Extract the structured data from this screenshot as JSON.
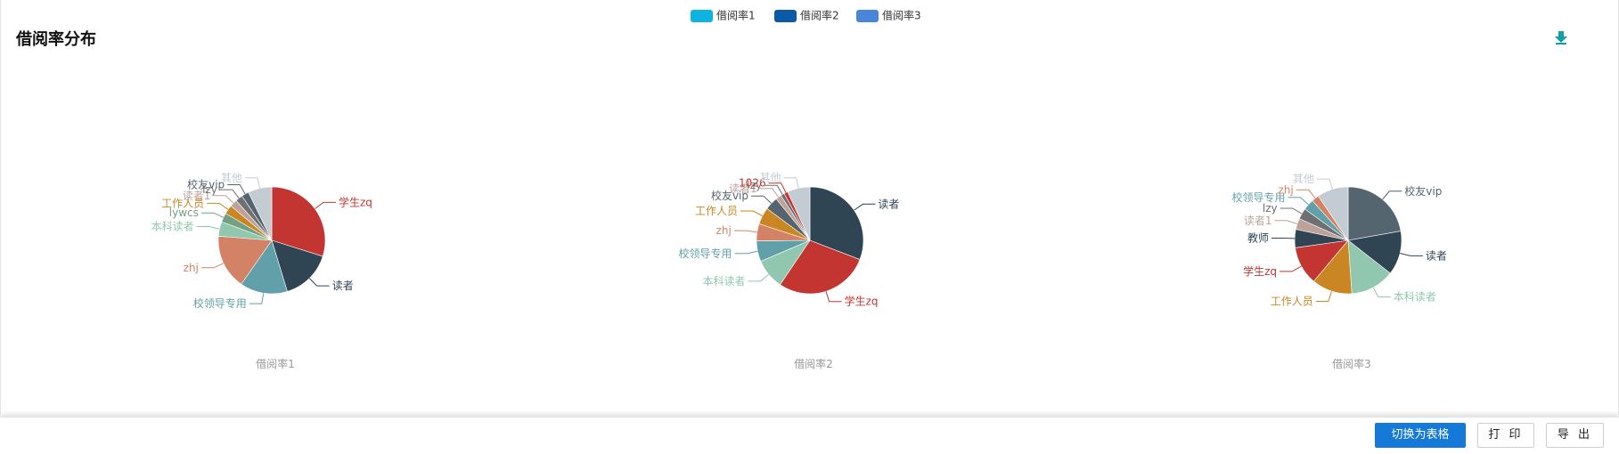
{
  "panel": {
    "title": "借阅率分布"
  },
  "footer": {
    "toggle_label": "切换为表格",
    "print_label": "打 印",
    "export_label": "导 出"
  },
  "icons": {
    "download": "download-arrow-icon",
    "download_color": "#11a0a8"
  },
  "chart_data": {
    "type": "pie",
    "legend": {
      "position": "top-center",
      "items": [
        {
          "name": "借阅率1",
          "color": "#0fb3e0"
        },
        {
          "name": "借阅率2",
          "color": "#0c5aa6"
        },
        {
          "name": "借阅率3",
          "color": "#4a86d8"
        }
      ]
    },
    "charts": [
      {
        "name": "借阅率1",
        "slices": [
          {
            "label": "学生zq",
            "value": 27.0,
            "color": "#c23531"
          },
          {
            "label": "读者",
            "value": 14.0,
            "color": "#2f4554"
          },
          {
            "label": "校领导专用",
            "value": 13.0,
            "color": "#61a0a8"
          },
          {
            "label": "zhj",
            "value": 15.0,
            "color": "#d48265"
          },
          {
            "label": "本科读者",
            "value": 4.0,
            "color": "#91c7ae"
          },
          {
            "label": "lywcs",
            "value": 2.5,
            "color": "#749f83"
          },
          {
            "label": "工作人员",
            "value": 2.5,
            "color": "#ca8622"
          },
          {
            "label": "读者1",
            "value": 2.0,
            "color": "#bda29a"
          },
          {
            "label": "lzy",
            "value": 2.0,
            "color": "#6e7074"
          },
          {
            "label": "校友vip",
            "value": 2.0,
            "color": "#546570"
          },
          {
            "label": "其他",
            "value": 6.5,
            "color": "#c4ccd3"
          }
        ]
      },
      {
        "name": "借阅率2",
        "slices": [
          {
            "label": "读者",
            "value": 27.0,
            "color": "#2f4554"
          },
          {
            "label": "学生zq",
            "value": 25.0,
            "color": "#c23531"
          },
          {
            "label": "本科读者",
            "value": 8.0,
            "color": "#91c7ae"
          },
          {
            "label": "校领导专用",
            "value": 5.5,
            "color": "#61a0a8"
          },
          {
            "label": "zhj",
            "value": 4.5,
            "color": "#d48265"
          },
          {
            "label": "工作人员",
            "value": 4.5,
            "color": "#ca8622"
          },
          {
            "label": "校友vip",
            "value": 3.5,
            "color": "#546570"
          },
          {
            "label": "读者1",
            "value": 1.5,
            "color": "#bda29a"
          },
          {
            "label": "lzy",
            "value": 1.0,
            "color": "#6e7074"
          },
          {
            "label": "1026",
            "value": 1.0,
            "color": "#c23531"
          },
          {
            "label": "其他",
            "value": 6.0,
            "color": "#c4ccd3"
          }
        ]
      },
      {
        "name": "借阅率3",
        "slices": [
          {
            "label": "校友vip",
            "value": 20.0,
            "color": "#546570"
          },
          {
            "label": "读者",
            "value": 12.0,
            "color": "#2f4554"
          },
          {
            "label": "本科读者",
            "value": 12.0,
            "color": "#91c7ae"
          },
          {
            "label": "工作人员",
            "value": 11.0,
            "color": "#ca8622"
          },
          {
            "label": "学生zq",
            "value": 10.5,
            "color": "#c23531"
          },
          {
            "label": "教师",
            "value": 5.0,
            "color": "#2f4554"
          },
          {
            "label": "读者1",
            "value": 3.0,
            "color": "#bda29a"
          },
          {
            "label": "lzy",
            "value": 3.0,
            "color": "#6e7074"
          },
          {
            "label": "校领导专用",
            "value": 3.0,
            "color": "#61a0a8"
          },
          {
            "label": "zhj",
            "value": 2.0,
            "color": "#d48265"
          },
          {
            "label": "其他",
            "value": 8.5,
            "color": "#c4ccd3"
          }
        ]
      }
    ]
  }
}
